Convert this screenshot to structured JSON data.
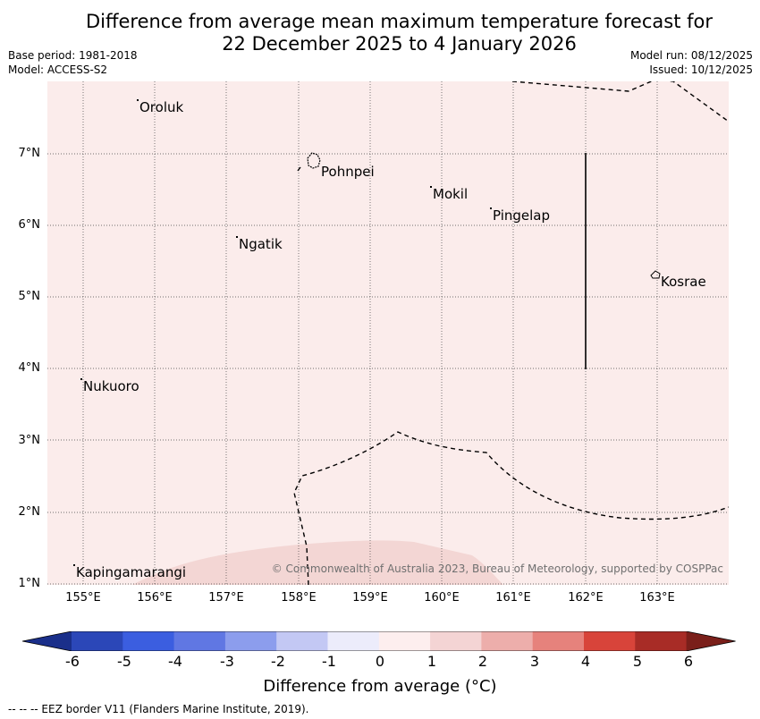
{
  "title_line1": "Difference from average mean maximum temperature forecast for",
  "title_line2": "22 December 2025 to 4 January 2026",
  "meta": {
    "base_period": "Base period: 1981-2018",
    "model": "Model: ACCESS-S2",
    "model_run": "Model run: 08/12/2025",
    "issued": "Issued: 10/12/2025"
  },
  "map": {
    "background_color": "#fbeceb",
    "warm_patch_color": "#f3d6d4",
    "lat_labels": [
      "7°N",
      "6°N",
      "5°N",
      "4°N",
      "3°N",
      "2°N",
      "1°N"
    ],
    "lon_labels": [
      "155°E",
      "156°E",
      "157°E",
      "158°E",
      "159°E",
      "160°E",
      "161°E",
      "162°E",
      "163°E"
    ],
    "places": [
      {
        "name": "Oroluk"
      },
      {
        "name": "Pohnpei"
      },
      {
        "name": "Mokil"
      },
      {
        "name": "Pingelap"
      },
      {
        "name": "Ngatik"
      },
      {
        "name": "Kosrae"
      },
      {
        "name": "Nukuoro"
      },
      {
        "name": "Kapingamarangi"
      }
    ],
    "copyright": "© Commonwealth of Australia 2023, Bureau of Meteorology, supported by COSPPac"
  },
  "colorbar": {
    "ticks": [
      "-6",
      "-5",
      "-4",
      "-3",
      "-2",
      "-1",
      "0",
      "1",
      "2",
      "3",
      "4",
      "5",
      "6"
    ],
    "colors": [
      "#1a2f8a",
      "#2b47b8",
      "#3b5ee0",
      "#6077e3",
      "#8c9ded",
      "#c3c8f4",
      "#ececfb",
      "#fdeeee",
      "#f4d4d4",
      "#edaeab",
      "#e6827c",
      "#d8443a",
      "#a82c26",
      "#7a1f1a"
    ],
    "label": "Difference from average (°C)"
  },
  "footer": "--  --  -- EEZ border V11 (Flanders Marine Institute, 2019)."
}
